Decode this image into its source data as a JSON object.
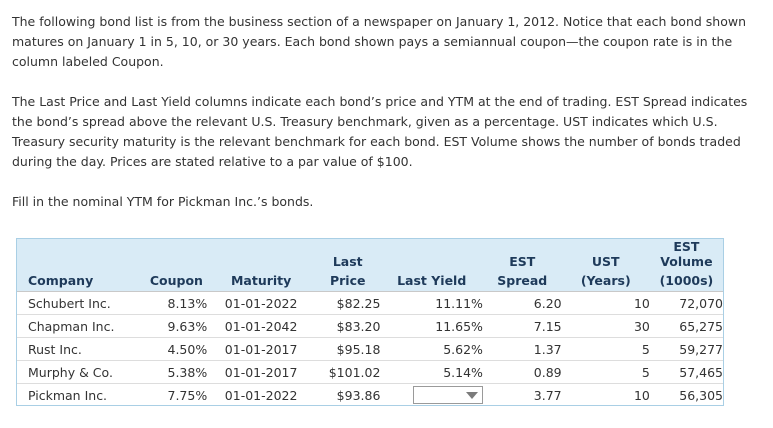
{
  "intro": {
    "p1": "The following bond list is from the business section of a newspaper on January 1, 2012. Notice that each bond shown matures on January 1 in 5, 10, or 30 years. Each bond shown pays a semiannual coupon—the coupon rate is in the column labeled Coupon.",
    "p2": "The Last Price and Last Yield columns indicate each bond’s price and YTM at the end of trading. EST Spread indicates the bond’s spread above the relevant U.S. Treasury benchmark, given as a percentage. UST indicates which U.S. Treasury security maturity is the relevant benchmark for each bond. EST Volume shows the number of bonds traded during the day. Prices are stated relative to a par value of $100.",
    "p3": "Fill in the nominal YTM for Pickman Inc.’s bonds."
  },
  "table": {
    "headers_top": {
      "price": "Last",
      "spread": "EST",
      "ust": "UST",
      "volume": "EST Volume"
    },
    "headers_bottom": {
      "company": "Company",
      "coupon": "Coupon",
      "maturity": "Maturity",
      "price": "Price",
      "yield": "Last Yield",
      "spread": "Spread",
      "ust": "(Years)",
      "volume": "(1000s)"
    },
    "rows": [
      {
        "company": "Schubert Inc.",
        "coupon": "8.13%",
        "maturity": "01-01-2022",
        "price": "$82.25",
        "yield": "11.11%",
        "spread": "6.20",
        "ust": "10",
        "volume": "72,070"
      },
      {
        "company": "Chapman Inc.",
        "coupon": "9.63%",
        "maturity": "01-01-2042",
        "price": "$83.20",
        "yield": "11.65%",
        "spread": "7.15",
        "ust": "30",
        "volume": "65,275"
      },
      {
        "company": "Rust Inc.",
        "coupon": "4.50%",
        "maturity": "01-01-2017",
        "price": "$95.18",
        "yield": "5.62%",
        "spread": "1.37",
        "ust": "5",
        "volume": "59,277"
      },
      {
        "company": "Murphy & Co.",
        "coupon": "5.38%",
        "maturity": "01-01-2017",
        "price": "$101.02",
        "yield": "5.14%",
        "spread": "0.89",
        "ust": "5",
        "volume": "57,465"
      },
      {
        "company": "Pickman Inc.",
        "coupon": "7.75%",
        "maturity": "01-01-2022",
        "price": "$93.86",
        "yield": "",
        "spread": "3.77",
        "ust": "10",
        "volume": "56,305"
      }
    ]
  },
  "icons": {
    "dropdown": "chevron-down-icon"
  }
}
